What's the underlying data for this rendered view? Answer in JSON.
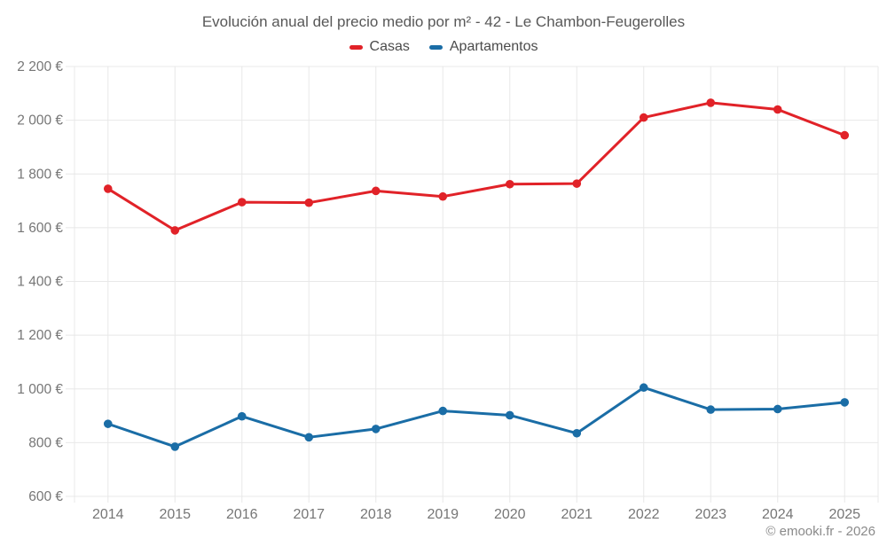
{
  "watermark": "© emooki.fr - 2026",
  "chart_data": {
    "type": "line",
    "title": "Evolución anual del precio medio por m² - 42 - Le Chambon-Feugerolles",
    "x_categories": [
      "2014",
      "2015",
      "2016",
      "2017",
      "2018",
      "2019",
      "2020",
      "2021",
      "2022",
      "2023",
      "2024",
      "2025"
    ],
    "series": [
      {
        "name": "Casas",
        "color": "#e12228",
        "values": [
          1745,
          1590,
          1695,
          1693,
          1737,
          1716,
          1762,
          1764,
          2010,
          2065,
          2040,
          1944
        ]
      },
      {
        "name": "Apartamentos",
        "color": "#1a6da6",
        "values": [
          870,
          785,
          898,
          820,
          851,
          918,
          902,
          835,
          1005,
          923,
          925,
          950
        ]
      }
    ],
    "ylim": [
      600,
      2200
    ],
    "ytick_step": 200,
    "ytick_labels": [
      "600 €",
      "800 €",
      "1 000 €",
      "1 200 €",
      "1 400 €",
      "1 600 €",
      "1 800 €",
      "2 000 €",
      "2 200 €"
    ],
    "grid": true,
    "legend_position": "top",
    "unit": "€"
  }
}
